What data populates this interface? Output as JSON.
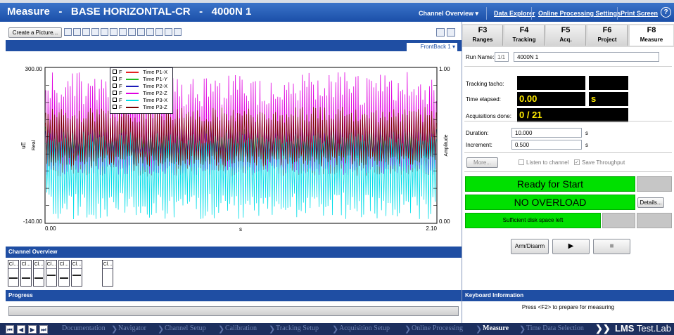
{
  "title": {
    "module": "Measure",
    "sep": "-",
    "project": "BASE HORIZONTAL-CR",
    "run": "4000N 1"
  },
  "top_links": [
    "Channel Overview",
    "Data Explorer",
    "Online Processing Settings",
    "Print Screen"
  ],
  "help_label": "?",
  "toolbar": {
    "create_picture": "Create a Picture..."
  },
  "plot": {
    "frontback": "FrontBack 1",
    "chart_data": {
      "type": "line",
      "title": "",
      "xlabel": "s",
      "ylabel": "Real",
      "yunit": "uE",
      "y2label": "Amplitude",
      "x_ticks": [
        "0.00",
        "2.10"
      ],
      "y_ticks": [
        "300.00",
        "-140.00"
      ],
      "y2_ticks": [
        "1.00",
        "0.00"
      ],
      "xlim": [
        0.0,
        2.1
      ],
      "ylim": [
        -140.0,
        300.0
      ],
      "grid": false,
      "legend_placement": "top-left",
      "series": [
        {
          "name": "Time P1-X",
          "color": "#e52222",
          "mean": 75,
          "peak_high": 165,
          "peak_low": -10
        },
        {
          "name": "Time P1-Y",
          "color": "#22bb22",
          "mean": 85,
          "peak_high": 150,
          "peak_low": 40
        },
        {
          "name": "Time P2-X",
          "color": "#1a1ab8",
          "mean": 80,
          "peak_high": 135,
          "peak_low": 50
        },
        {
          "name": "Time P2-Z",
          "color": "#e000e0",
          "mean": 70,
          "peak_high": 290,
          "peak_low": -5
        },
        {
          "name": "Time P3-X",
          "color": "#00dde8",
          "mean": 40,
          "peak_high": 120,
          "peak_low": -130
        },
        {
          "name": "Time P3-Z",
          "color": "#7a0000",
          "mean": 90,
          "peak_high": 190,
          "peak_low": 20
        }
      ],
      "legend_prefix": "F"
    }
  },
  "channel_overview": {
    "title": "Channel Overview",
    "channels": [
      "Cl...",
      "Cl...",
      "Cl...",
      "Cl...",
      "Cl...",
      "Cl...",
      "Cl..."
    ]
  },
  "progress": {
    "title": "Progress"
  },
  "fkeys": [
    {
      "key": "F3",
      "label": "Ranges",
      "active": false
    },
    {
      "key": "F4",
      "label": "Tracking",
      "active": false
    },
    {
      "key": "F5",
      "label": "Acq.",
      "active": false
    },
    {
      "key": "F6",
      "label": "Project",
      "active": false
    },
    {
      "key": "F8",
      "label": "Measure",
      "active": true
    }
  ],
  "measure": {
    "run_name_label": "Run Name:",
    "run_index": "1/1",
    "run_name": "4000N 1",
    "tracking_tacho_label": "Tracking tacho:",
    "time_elapsed_label": "Time elapsed:",
    "time_elapsed": "0.00",
    "time_unit": "s",
    "acq_done_label": "Acquisitions done:",
    "acq_done": "0 / 21",
    "duration_label": "Duration:",
    "duration": "10.000",
    "duration_unit": "s",
    "increment_label": "Increment:",
    "increment": "0.500",
    "increment_unit": "s",
    "more_button": "More...",
    "listen_label": "Listen to channel",
    "save_throughput_label": "Save Throughput",
    "status_ready": "Ready for Start",
    "status_overload": "NO OVERLOAD",
    "details_button": "Details...",
    "status_disk": "Sufficient disk space left",
    "arm_disarm_button": "Arm/Disarm"
  },
  "keyboard_info": {
    "title": "Keyboard Information",
    "text": "Press <F2> to prepare for measuring"
  },
  "workflow": [
    "Documentation",
    "Navigator",
    "Channel Setup",
    "Calibration",
    "Tracking Setup",
    "Acquisition Setup",
    "Online Processing",
    "Measure",
    "Time Data Selection"
  ],
  "workflow_current": "Measure",
  "brand": {
    "bold": "LMS",
    "rest": " Test.Lab"
  },
  "colors": {
    "header_blue": "#1f4ea3",
    "status_green": "#00e000",
    "readout_yellow": "#ffeb00"
  }
}
